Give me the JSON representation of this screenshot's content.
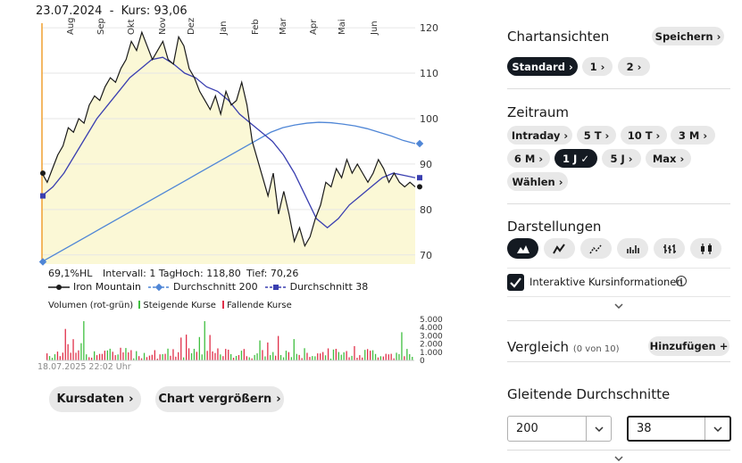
{
  "chart": {
    "title": "23.07.2024  -  Kurs: 93,06",
    "month_labels": [
      "Aug",
      "Sep",
      "Okt",
      "Nov",
      "Dez",
      "Jan",
      "Feb",
      "Mar",
      "Apr",
      "Mai",
      "Jun"
    ],
    "y_ticks": [
      "120",
      "110",
      "100",
      "90",
      "80",
      "70"
    ],
    "stats": {
      "hl": "69,1%HL",
      "interval": "Intervall: 1 Tag",
      "high": "Hoch:  118,80",
      "low": "Tief:  70,26"
    },
    "legend": {
      "series1": "Iron Mountain",
      "series2": "Durchschnitt 200",
      "series3": "Durchschnitt 38"
    },
    "colors": {
      "price": "#1a1a1a",
      "fill": "#fbf8d6",
      "ma200": "#4f86d6",
      "ma38": "#3a3fb0",
      "vline": "#f0a030",
      "up": "#3fbf3f",
      "down": "#e0304a"
    }
  },
  "chart_data": {
    "type": "line",
    "x_range": [
      "2024-07-23",
      "2025-07-18"
    ],
    "ylim": [
      68,
      121
    ],
    "series": [
      {
        "name": "Iron Mountain",
        "values": [
          88,
          86,
          89,
          92,
          94,
          98,
          97,
          100,
          99,
          103,
          105,
          104,
          107,
          109,
          108,
          111,
          113,
          117,
          115,
          119,
          116,
          113,
          115,
          117,
          113,
          112,
          118,
          116,
          111,
          109,
          106,
          104,
          102,
          105,
          101,
          106,
          103,
          104,
          108,
          103,
          95,
          91,
          87,
          83,
          88,
          79,
          84,
          79,
          73,
          76,
          72,
          74,
          78,
          81,
          86,
          85,
          89,
          87,
          91,
          88,
          90,
          88,
          86,
          88,
          91,
          89,
          86,
          88,
          86,
          85,
          86,
          85
        ]
      },
      {
        "name": "Durchschnitt 200",
        "values": [
          68.5,
          70,
          71.5,
          73,
          74.5,
          76,
          77.5,
          79,
          80.5,
          82,
          83.5,
          85,
          86.5,
          88,
          89.5,
          91,
          92.5,
          94,
          95.5,
          97,
          98,
          98.6,
          99,
          99.2,
          99.1,
          98.8,
          98.4,
          97.8,
          97,
          96.2,
          95.2,
          94.5
        ]
      },
      {
        "name": "Durchschnitt 38",
        "values": [
          83,
          85,
          88,
          92,
          96,
          100,
          103,
          106,
          109,
          111,
          113,
          113.5,
          112,
          110,
          109,
          107,
          106,
          104,
          101,
          99,
          97,
          95,
          92,
          88,
          83,
          78,
          76,
          78,
          81,
          83,
          85,
          87,
          88,
          87.5,
          87
        ]
      }
    ],
    "volume": {
      "title": "Volumen (rot-grün)",
      "up_label": "Steigende Kurse",
      "down_label": "Fallende Kurse",
      "y_ticks": [
        "5.000",
        "4.000",
        "3.000",
        "2.000",
        "1.000",
        "0"
      ]
    }
  },
  "footer": {
    "timestamp": "18.07.2025 22:02 Uhr",
    "kursdaten": "Kursdaten",
    "vergroessern": "Chart vergrößern"
  },
  "sidebar": {
    "chartansichten": {
      "title": "Chartansichten",
      "save": "Speichern",
      "views": [
        "Standard",
        "1",
        "2"
      ]
    },
    "zeitraum": {
      "title": "Zeitraum",
      "options": [
        "Intraday",
        "5 T",
        "10 T",
        "3 M",
        "6 M",
        "1 J",
        "5 J",
        "Max",
        "Wählen"
      ],
      "selected": "1 J"
    },
    "darstellungen": {
      "title": "Darstellungen",
      "checkbox_label": "Interaktive Kursinformationen"
    },
    "vergleich": {
      "title": "Vergleich",
      "count": "(0 von 10)",
      "add": "Hinzufügen"
    },
    "gleitende": {
      "title": "Gleitende Durchschnitte",
      "value1": "200",
      "value2": "38"
    }
  }
}
